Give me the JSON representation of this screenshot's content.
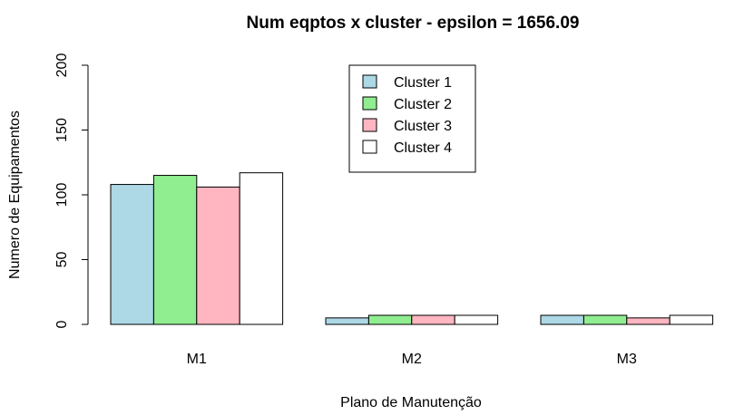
{
  "chart_data": {
    "type": "bar",
    "title": "Num eqptos x cluster - epsilon =  1656.09",
    "xlabel": "Plano de Manutenção",
    "ylabel": "Numero de Equipamentos",
    "categories": [
      "M1",
      "M2",
      "M3"
    ],
    "ylim": [
      0,
      200
    ],
    "yticks": [
      0,
      50,
      100,
      150,
      200
    ],
    "series": [
      {
        "name": "Cluster 1",
        "color": "#add8e6",
        "values": [
          108,
          5,
          7
        ]
      },
      {
        "name": "Cluster 2",
        "color": "#90ee90",
        "values": [
          115,
          7,
          7
        ]
      },
      {
        "name": "Cluster 3",
        "color": "#ffb6c1",
        "values": [
          106,
          7,
          5
        ]
      },
      {
        "name": "Cluster 4",
        "color": "#ffffff",
        "values": [
          117,
          7,
          7
        ]
      }
    ],
    "legend_position": "top-center",
    "grid": false
  }
}
